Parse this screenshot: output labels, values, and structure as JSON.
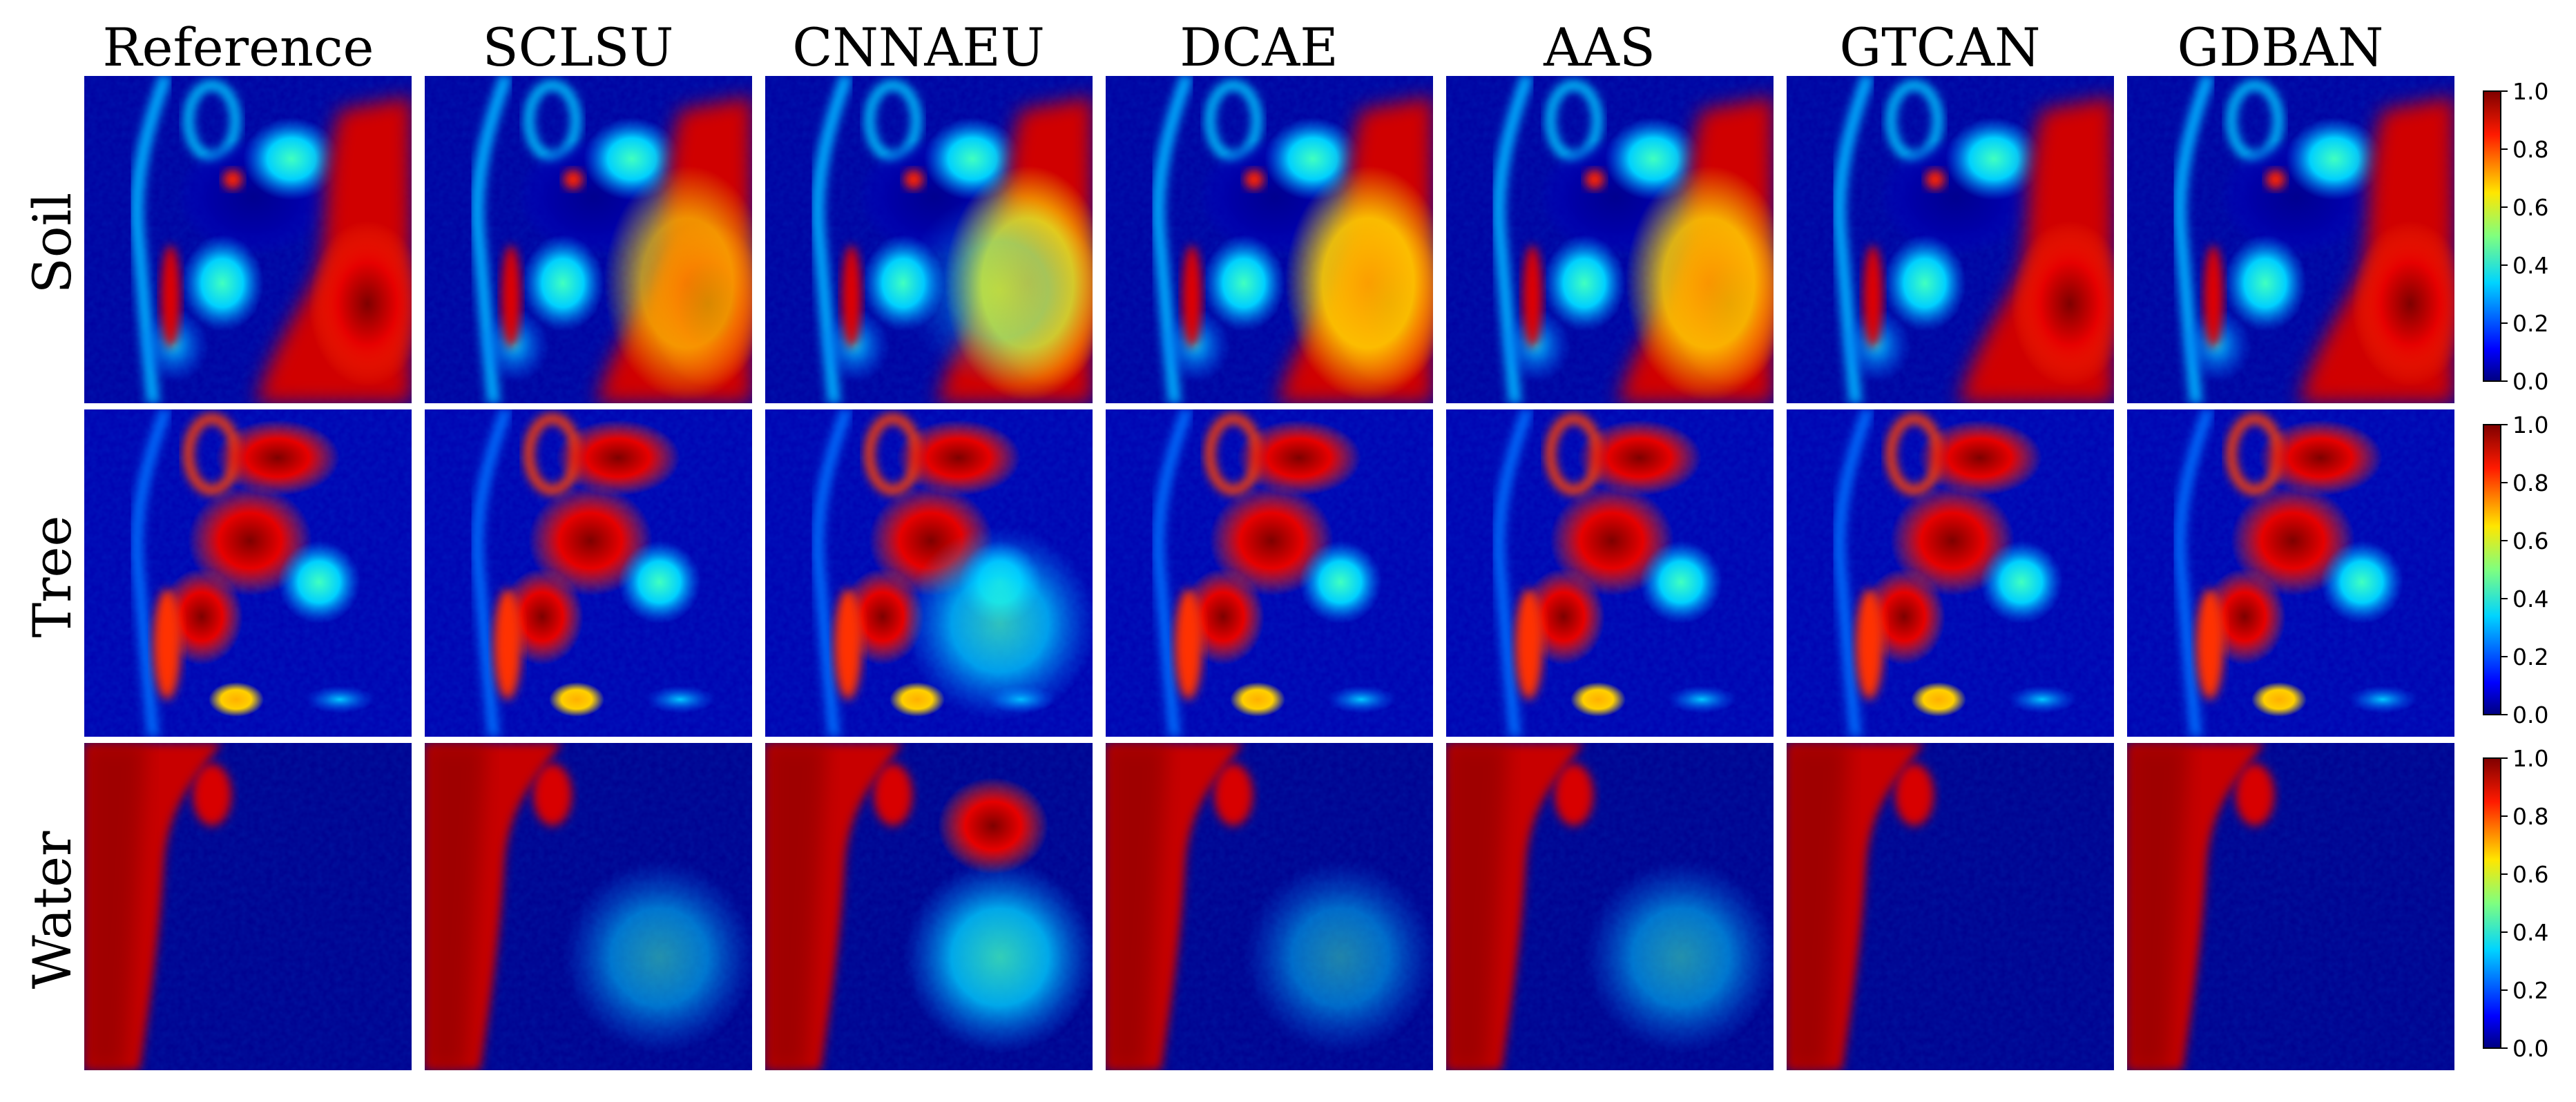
{
  "columns": [
    "Reference",
    "SCLSU",
    "CNNAEU",
    "DCAE",
    "AAS",
    "GTCAN",
    "GDBAN"
  ],
  "rows": [
    "Soil",
    "Tree",
    "Water"
  ],
  "colorbar": {
    "ticks": [
      "0.0",
      "0.2",
      "0.4",
      "0.6",
      "0.8",
      "1.0"
    ],
    "colormap": [
      "#00007f",
      "#0000ff",
      "#007fff",
      "#00ffff",
      "#7fff7f",
      "#ffff00",
      "#ff7f00",
      "#ff0000",
      "#7f0000"
    ]
  }
}
